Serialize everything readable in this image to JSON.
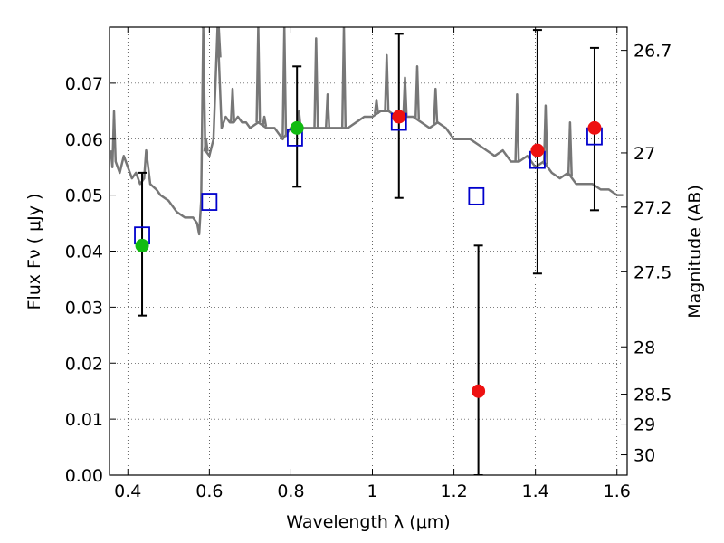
{
  "chart_data": {
    "type": "scatter",
    "title": "",
    "xlabel": "Wavelength  λ (μm)",
    "ylabel": "Flux  Fν  ( μJy )",
    "y2label": "Magnitude (AB)",
    "xlim": [
      0.355,
      1.625
    ],
    "ylim": [
      0.0,
      0.08
    ],
    "grid": true,
    "x_ticks": [
      0.4,
      0.6,
      0.8,
      1.0,
      1.2,
      1.4,
      1.6
    ],
    "x_tick_labels": [
      "0.4",
      "0.6",
      "0.8",
      "1",
      "1.2",
      "1.4",
      "1.6"
    ],
    "y_ticks": [
      0.0,
      0.01,
      0.02,
      0.03,
      0.04,
      0.05,
      0.06,
      0.07
    ],
    "y_tick_labels": [
      "0.00",
      "0.01",
      "0.02",
      "0.03",
      "0.04",
      "0.05",
      "0.06",
      "0.07"
    ],
    "mag_ticks": [
      {
        "mag": 26.7,
        "label": "26.7"
      },
      {
        "mag": 27.0,
        "label": "27"
      },
      {
        "mag": 27.2,
        "label": "27.2"
      },
      {
        "mag": 27.5,
        "label": "27.5"
      },
      {
        "mag": 28.0,
        "label": "28"
      },
      {
        "mag": 28.5,
        "label": "28.5"
      },
      {
        "mag": 29.0,
        "label": "29"
      },
      {
        "mag": 30.0,
        "label": "30"
      }
    ],
    "colors": {
      "green": "#11bb11",
      "red": "#ee1111",
      "box": "#0000cc",
      "spectrum": "#777777",
      "errorbar": "#000000"
    },
    "observed_green": [
      {
        "x": 0.435,
        "y": 0.041,
        "ylo": 0.0285,
        "yhi": 0.054
      },
      {
        "x": 0.815,
        "y": 0.062,
        "ylo": 0.0515,
        "yhi": 0.073
      }
    ],
    "observed_red": [
      {
        "x": 1.065,
        "y": 0.064,
        "ylo": 0.0495,
        "yhi": 0.0788
      },
      {
        "x": 1.26,
        "y": 0.015,
        "ylo": 0.0,
        "yhi": 0.041
      },
      {
        "x": 1.405,
        "y": 0.058,
        "ylo": 0.036,
        "yhi": 0.0795
      },
      {
        "x": 1.545,
        "y": 0.062,
        "ylo": 0.0473,
        "yhi": 0.0763
      }
    ],
    "model_boxes": [
      {
        "x": 0.435,
        "y": 0.0428
      },
      {
        "x": 0.6,
        "y": 0.0488
      },
      {
        "x": 0.81,
        "y": 0.0603
      },
      {
        "x": 1.065,
        "y": 0.0631
      },
      {
        "x": 1.255,
        "y": 0.0498
      },
      {
        "x": 1.405,
        "y": 0.0563
      },
      {
        "x": 1.545,
        "y": 0.0605
      }
    ],
    "spectrum": {
      "x": [
        0.358,
        0.362,
        0.366,
        0.37,
        0.38,
        0.39,
        0.4,
        0.41,
        0.42,
        0.43,
        0.44,
        0.445,
        0.455,
        0.47,
        0.48,
        0.5,
        0.52,
        0.54,
        0.55,
        0.56,
        0.57,
        0.575,
        0.58,
        0.585,
        0.59,
        0.6,
        0.61,
        0.62,
        0.63,
        0.64,
        0.65,
        0.66,
        0.67,
        0.68,
        0.69,
        0.7,
        0.72,
        0.74,
        0.76,
        0.78,
        0.8,
        0.82,
        0.84,
        0.86,
        0.88,
        0.9,
        0.92,
        0.94,
        0.96,
        0.98,
        1.0,
        1.02,
        1.04,
        1.06,
        1.08,
        1.1,
        1.12,
        1.14,
        1.16,
        1.18,
        1.2,
        1.22,
        1.24,
        1.26,
        1.28,
        1.3,
        1.32,
        1.34,
        1.36,
        1.38,
        1.4,
        1.42,
        1.44,
        1.46,
        1.48,
        1.5,
        1.52,
        1.54,
        1.56,
        1.58,
        1.6,
        1.615
      ],
      "y": [
        0.058,
        0.055,
        0.065,
        0.056,
        0.054,
        0.057,
        0.055,
        0.053,
        0.054,
        0.052,
        0.053,
        0.058,
        0.052,
        0.051,
        0.05,
        0.049,
        0.047,
        0.046,
        0.046,
        0.046,
        0.045,
        0.043,
        0.049,
        0.08,
        0.058,
        0.057,
        0.06,
        0.08,
        0.062,
        0.064,
        0.063,
        0.063,
        0.064,
        0.063,
        0.063,
        0.062,
        0.063,
        0.062,
        0.062,
        0.06,
        0.062,
        0.062,
        0.062,
        0.062,
        0.062,
        0.062,
        0.062,
        0.062,
        0.063,
        0.064,
        0.064,
        0.065,
        0.065,
        0.064,
        0.064,
        0.064,
        0.063,
        0.062,
        0.063,
        0.062,
        0.06,
        0.06,
        0.06,
        0.059,
        0.058,
        0.057,
        0.058,
        0.056,
        0.056,
        0.057,
        0.055,
        0.056,
        0.054,
        0.053,
        0.054,
        0.052,
        0.052,
        0.052,
        0.051,
        0.051,
        0.05,
        0.05
      ]
    },
    "spikes": [
      {
        "x": 0.585,
        "y": 0.08
      },
      {
        "x": 0.592,
        "y": 0.06
      },
      {
        "x": 0.623,
        "y": 0.08
      },
      {
        "x": 0.657,
        "y": 0.069
      },
      {
        "x": 0.72,
        "y": 0.08
      },
      {
        "x": 0.735,
        "y": 0.064
      },
      {
        "x": 0.784,
        "y": 0.08
      },
      {
        "x": 0.82,
        "y": 0.065
      },
      {
        "x": 0.862,
        "y": 0.078
      },
      {
        "x": 0.89,
        "y": 0.068
      },
      {
        "x": 0.93,
        "y": 0.08
      },
      {
        "x": 1.01,
        "y": 0.067
      },
      {
        "x": 1.035,
        "y": 0.075
      },
      {
        "x": 1.08,
        "y": 0.071
      },
      {
        "x": 1.11,
        "y": 0.073
      },
      {
        "x": 1.155,
        "y": 0.069
      },
      {
        "x": 1.355,
        "y": 0.068
      },
      {
        "x": 1.425,
        "y": 0.066
      },
      {
        "x": 1.485,
        "y": 0.063
      }
    ]
  }
}
